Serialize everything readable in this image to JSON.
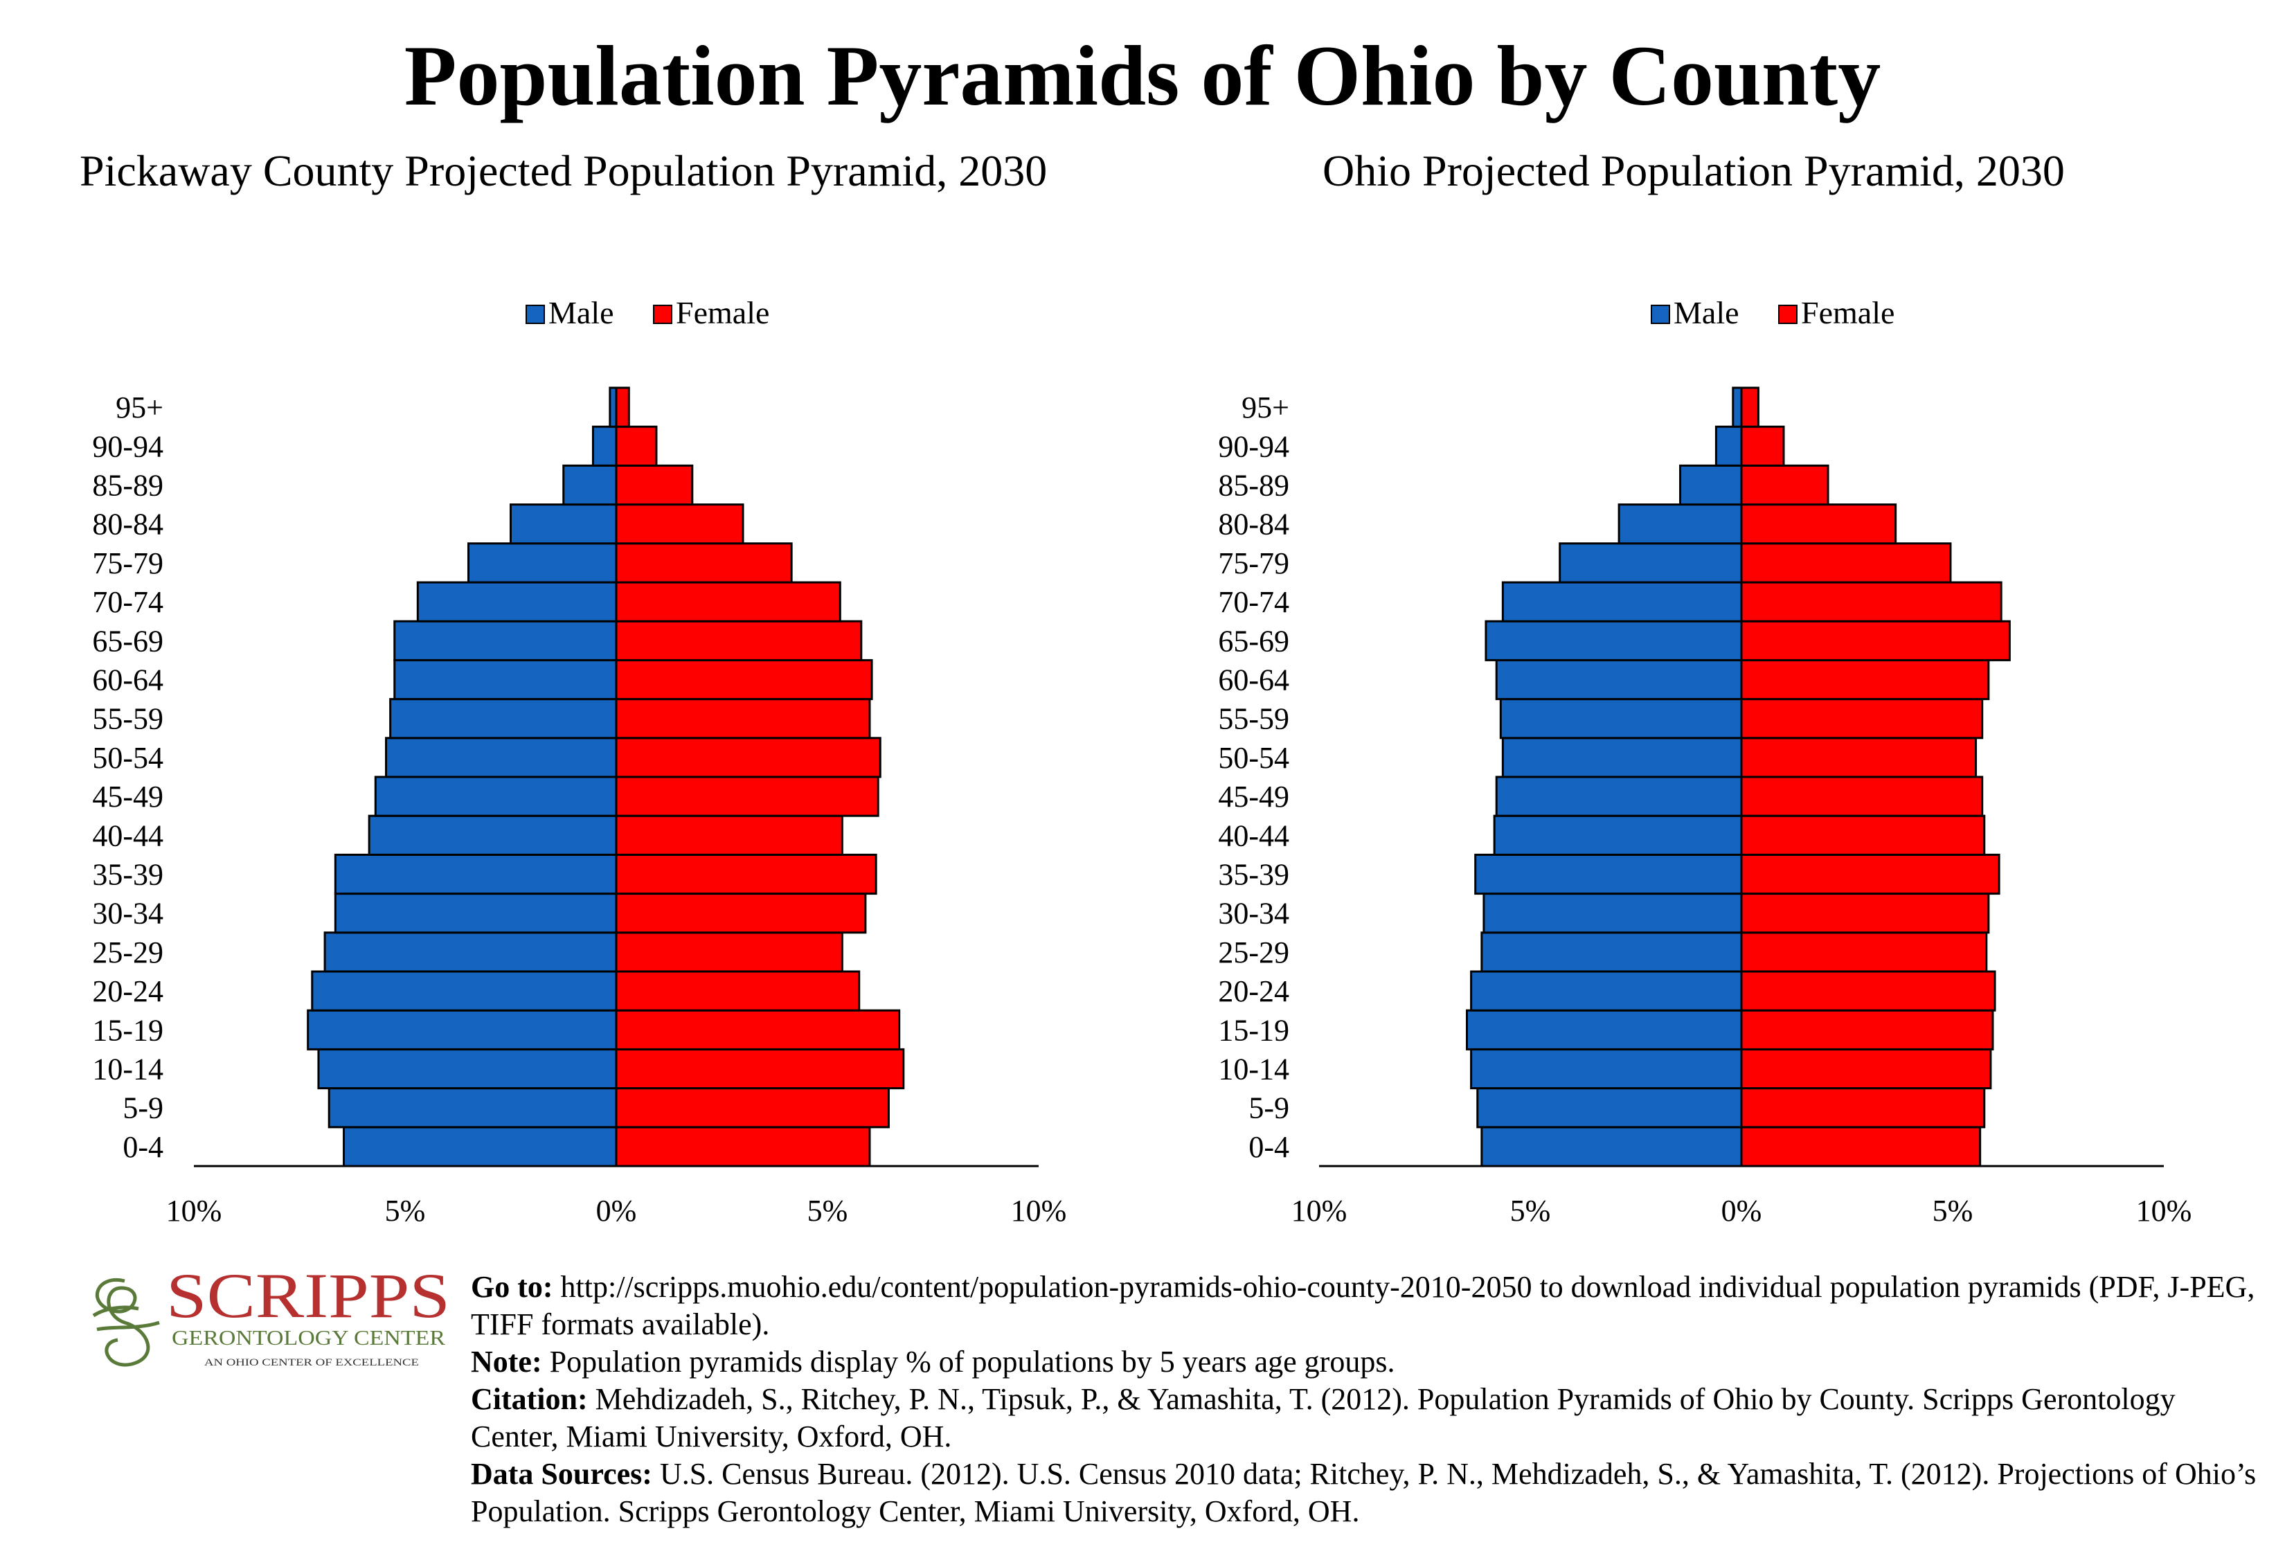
{
  "title": "Population Pyramids of Ohio by County",
  "colors": {
    "male": "#1565C0",
    "female": "#FF0000",
    "logo_red": "#B5302E",
    "logo_green": "#5A7A3A"
  },
  "chart_data": [
    {
      "type": "bar",
      "orientation": "horizontal-pyramid",
      "title": "Pickaway County Projected Population Pyramid, 2030",
      "categories": [
        "0-4",
        "5-9",
        "10-14",
        "15-19",
        "20-24",
        "25-29",
        "30-34",
        "35-39",
        "40-44",
        "45-49",
        "50-54",
        "55-59",
        "60-64",
        "65-69",
        "70-74",
        "75-79",
        "80-84",
        "85-89",
        "90-94",
        "95+"
      ],
      "series": [
        {
          "name": "Male",
          "values": [
            6.45,
            6.8,
            7.05,
            7.3,
            7.2,
            6.9,
            6.65,
            6.65,
            5.85,
            5.7,
            5.45,
            5.35,
            5.25,
            5.25,
            4.7,
            3.5,
            2.5,
            1.25,
            0.55,
            0.15
          ]
        },
        {
          "name": "Female",
          "values": [
            6.0,
            6.45,
            6.8,
            6.7,
            5.75,
            5.35,
            5.9,
            6.15,
            5.35,
            6.2,
            6.25,
            6.0,
            6.05,
            5.8,
            5.3,
            4.15,
            3.0,
            1.8,
            0.95,
            0.3
          ]
        }
      ],
      "xlim": [
        -10,
        10
      ],
      "xticks": [
        "10%",
        "5%",
        "0%",
        "5%",
        "10%"
      ],
      "legend": "top-center",
      "grid": false
    },
    {
      "type": "bar",
      "orientation": "horizontal-pyramid",
      "title": "Ohio Projected Population Pyramid, 2030",
      "categories": [
        "0-4",
        "5-9",
        "10-14",
        "15-19",
        "20-24",
        "25-29",
        "30-34",
        "35-39",
        "40-44",
        "45-49",
        "50-54",
        "55-59",
        "60-64",
        "65-69",
        "70-74",
        "75-79",
        "80-84",
        "85-89",
        "90-94",
        "95+"
      ],
      "series": [
        {
          "name": "Male",
          "values": [
            6.15,
            6.25,
            6.4,
            6.5,
            6.4,
            6.15,
            6.1,
            6.3,
            5.85,
            5.8,
            5.65,
            5.7,
            5.8,
            6.05,
            5.65,
            4.3,
            2.9,
            1.45,
            0.6,
            0.2
          ]
        },
        {
          "name": "Female",
          "values": [
            5.65,
            5.75,
            5.9,
            5.95,
            6.0,
            5.8,
            5.85,
            6.1,
            5.75,
            5.7,
            5.55,
            5.7,
            5.85,
            6.35,
            6.15,
            4.95,
            3.65,
            2.05,
            1.0,
            0.4
          ]
        }
      ],
      "xlim": [
        -10,
        10
      ],
      "xticks": [
        "10%",
        "5%",
        "0%",
        "5%",
        "10%"
      ],
      "legend": "top-center",
      "grid": false
    }
  ],
  "logo": {
    "name": "SCRIPPS",
    "subtitle": "GERONTOLOGY CENTER",
    "tagline": "AN OHIO CENTER OF EXCELLENCE"
  },
  "notes": {
    "goto_label": "Go to:",
    "goto_text": " http://scripps.muohio.edu/content/population-pyramids-ohio-county-2010-2050 to download individual population pyramids (PDF, J-PEG, TIFF formats available).",
    "note_label": "Note:",
    "note_text": " Population pyramids display % of populations by 5 years age groups.",
    "citation_label": "Citation:",
    "citation_text": " Mehdizadeh, S., Ritchey, P. N., Tipsuk, P., & Yamashita, T. (2012). Population Pyramids of Ohio by County. Scripps Gerontology Center, Miami University, Oxford, OH.",
    "sources_label": "Data Sources:",
    "sources_text": " U.S. Census Bureau. (2012). U.S. Census 2010 data; Ritchey, P. N., Mehdizadeh, S., & Yamashita, T. (2012). Projections of Ohio’s Population. Scripps Gerontology Center, Miami University, Oxford, OH."
  }
}
